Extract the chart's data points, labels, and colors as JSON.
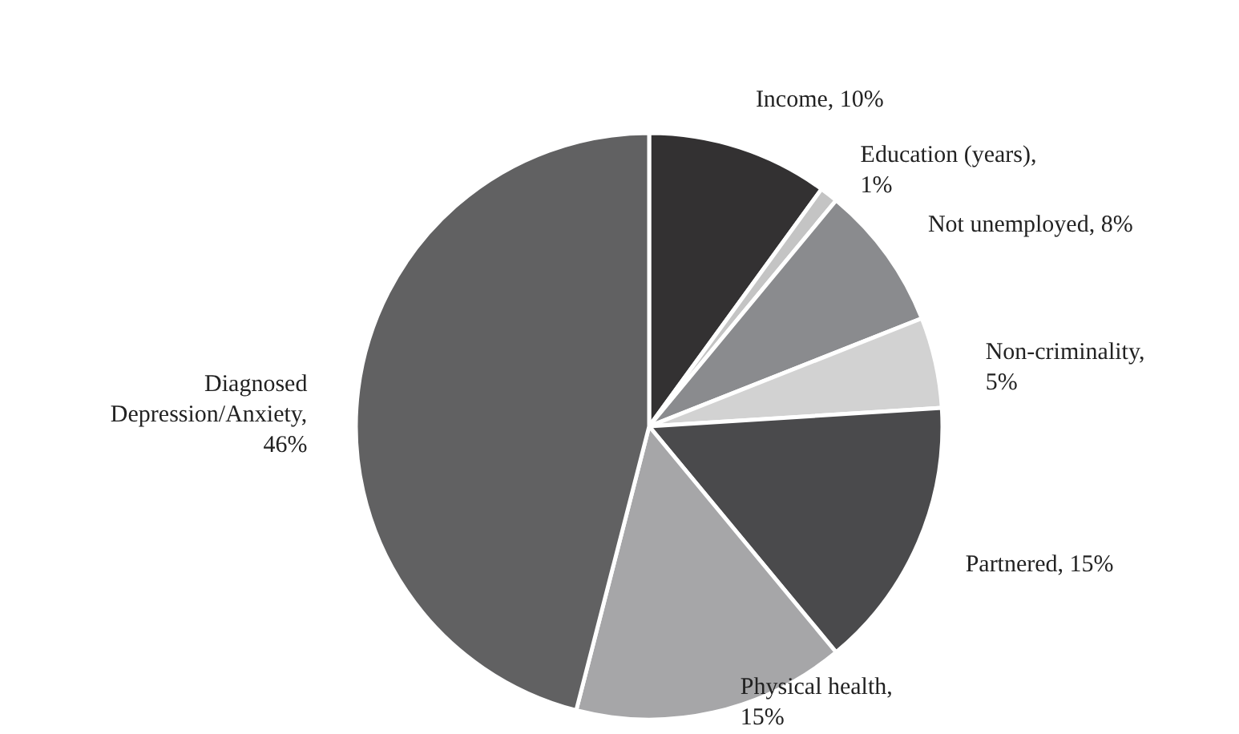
{
  "chart_data": {
    "type": "pie",
    "categories": [
      "Income, 10%",
      "Education (years), 1%",
      "Not unemployed, 8%",
      "Non-criminality, 5%",
      "Partnered, 15%",
      "Physical health, 15%",
      "Diagnosed Depression/Anxiety, 46%"
    ],
    "values": [
      10,
      1,
      8,
      5,
      15,
      15,
      46
    ],
    "colors": [
      "#333132",
      "#c4c4c4",
      "#8a8b8e",
      "#d2d2d2",
      "#4a4a4c",
      "#a6a6a8",
      "#616162"
    ]
  }
}
